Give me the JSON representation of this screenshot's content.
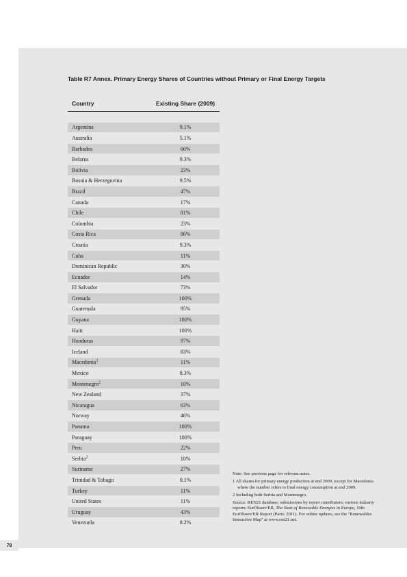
{
  "page_number": "78",
  "title": "Table R7 Annex. Primary Energy Shares of Countries without Primary or Final Energy Targets",
  "headers": {
    "country": "Country",
    "share": "Existing Share (2009)"
  },
  "rows": [
    {
      "country": "Argentina",
      "share": "9.1%"
    },
    {
      "country": "Australia",
      "share": "5.1%"
    },
    {
      "country": "Barbados",
      "share": "66%"
    },
    {
      "country": "Belarus",
      "share": "9.3%"
    },
    {
      "country": "Bolivia",
      "share": "23%"
    },
    {
      "country": "Bosnia & Herzegovina",
      "share": "9.5%"
    },
    {
      "country": "Brazil",
      "share": "47%"
    },
    {
      "country": "Canada",
      "share": "17%"
    },
    {
      "country": "Chile",
      "share": "81%"
    },
    {
      "country": "Colombia",
      "share": "23%"
    },
    {
      "country": "Costa Rica",
      "share": "86%"
    },
    {
      "country": "Croatia",
      "share": "9.3%"
    },
    {
      "country": "Cuba",
      "share": "11%"
    },
    {
      "country": "Dominican Republic",
      "share": "30%"
    },
    {
      "country": "Ecuador",
      "share": "14%"
    },
    {
      "country": "El Salvador",
      "share": "73%"
    },
    {
      "country": "Grenada",
      "share": "100%"
    },
    {
      "country": "Guatemala",
      "share": "95%"
    },
    {
      "country": "Guyana",
      "share": "100%"
    },
    {
      "country": "Haiti",
      "share": "100%"
    },
    {
      "country": "Honduras",
      "share": "97%"
    },
    {
      "country": "Iceland",
      "share": "83%"
    },
    {
      "country": "Macedonia",
      "sup": "1",
      "share": "11%"
    },
    {
      "country": "Mexico",
      "share": "8.3%"
    },
    {
      "country": "Montenegro",
      "sup": "2",
      "share": "10%"
    },
    {
      "country": "New Zealand",
      "share": "37%"
    },
    {
      "country": "Nicaragua",
      "share": "63%"
    },
    {
      "country": "Norway",
      "share": "46%"
    },
    {
      "country": "Panama",
      "share": "100%"
    },
    {
      "country": "Paraguay",
      "share": "100%"
    },
    {
      "country": "Peru",
      "share": "22%"
    },
    {
      "country": "Serbia",
      "sup": "2",
      "share": "10%"
    },
    {
      "country": "Suriname",
      "share": "27%"
    },
    {
      "country": "Trinidad & Tobago",
      "share": "0.1%"
    },
    {
      "country": "Turkey",
      "share": "11%"
    },
    {
      "country": "United States",
      "share": "11%"
    },
    {
      "country": "Uruguay",
      "share": "43%"
    },
    {
      "country": "Venezuela",
      "share": "8.2%"
    }
  ],
  "notes": {
    "n0": "Note: See previous page for relevant notes.",
    "n1": "1 All shares for primary energy production at end 2009, except for Macedonia where the number refers to final energy consumption at end 2009.",
    "n2": "2 Including both Serbia and Montenegro.",
    "src": "Source: REN21 database; submissions by report contributors; various industry reports; EurObserv'ER, ",
    "src_em": "The State of Renewable Energies in Europe",
    "src2": ", 10th EurObserv'ER Report (Paris: 2011). For online updates, see the \"Renewables Interactive Map\" at www.ren21.net."
  },
  "colors": {
    "page_bg": "#ffffff",
    "panel_bg": "#e7e7e7",
    "row_alt": "#cfcfcf",
    "text": "#1a1a1a"
  }
}
